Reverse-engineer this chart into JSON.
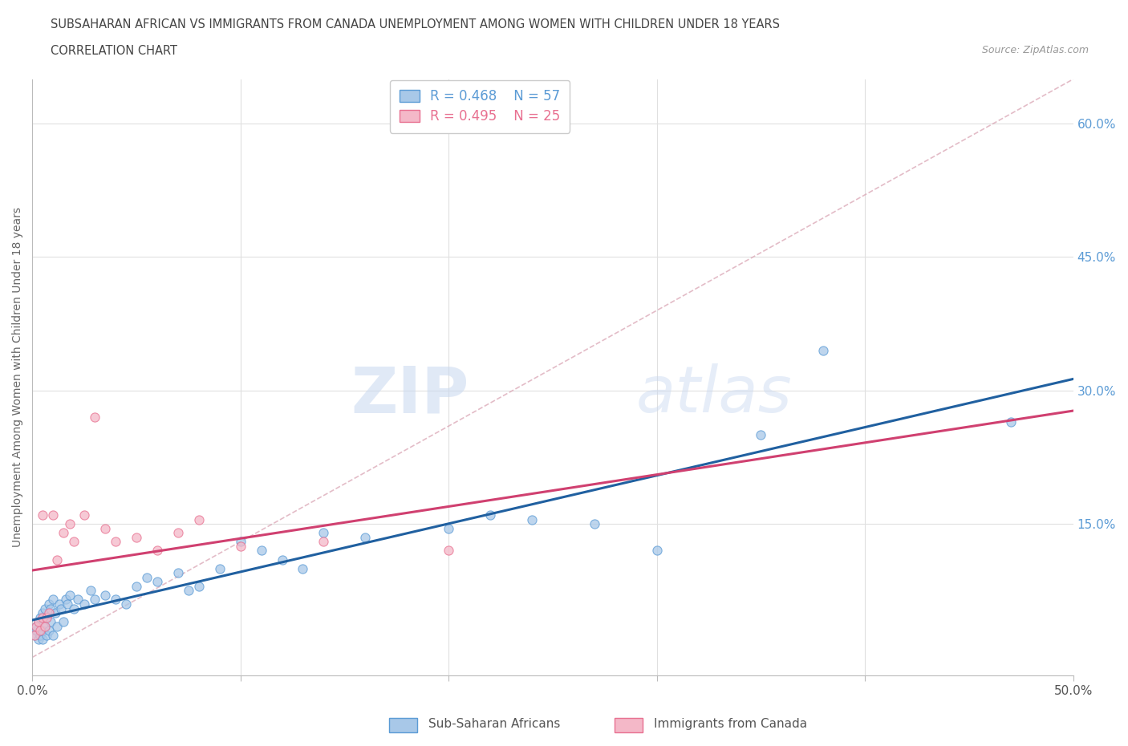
{
  "title_line1": "SUBSAHARAN AFRICAN VS IMMIGRANTS FROM CANADA UNEMPLOYMENT AMONG WOMEN WITH CHILDREN UNDER 18 YEARS",
  "title_line2": "CORRELATION CHART",
  "source_text": "Source: ZipAtlas.com",
  "watermark_zip": "ZIP",
  "watermark_atlas": "atlas",
  "ylabel": "Unemployment Among Women with Children Under 18 years",
  "xlim": [
    0.0,
    0.5
  ],
  "ylim": [
    -0.02,
    0.65
  ],
  "xticks": [
    0.0,
    0.1,
    0.2,
    0.3,
    0.4,
    0.5
  ],
  "yticks_right": [
    0.15,
    0.3,
    0.45,
    0.6
  ],
  "legend_r1": "R = 0.468",
  "legend_n1": "N = 57",
  "legend_r2": "R = 0.495",
  "legend_n2": "N = 25",
  "color_blue_fill": "#a8c8e8",
  "color_blue_edge": "#5b9bd5",
  "color_pink_fill": "#f4b8c8",
  "color_pink_edge": "#e87090",
  "color_trend_blue": "#2060a0",
  "color_trend_pink": "#d04070",
  "color_diagonal": "#d8a0b0",
  "blue_x": [
    0.001,
    0.002,
    0.002,
    0.003,
    0.003,
    0.004,
    0.004,
    0.005,
    0.005,
    0.005,
    0.006,
    0.006,
    0.007,
    0.007,
    0.008,
    0.008,
    0.009,
    0.009,
    0.01,
    0.01,
    0.011,
    0.012,
    0.013,
    0.014,
    0.015,
    0.016,
    0.017,
    0.018,
    0.02,
    0.022,
    0.025,
    0.028,
    0.03,
    0.035,
    0.04,
    0.045,
    0.05,
    0.055,
    0.06,
    0.07,
    0.075,
    0.08,
    0.09,
    0.1,
    0.11,
    0.12,
    0.13,
    0.14,
    0.16,
    0.2,
    0.22,
    0.24,
    0.27,
    0.3,
    0.35,
    0.38,
    0.47
  ],
  "blue_y": [
    0.025,
    0.03,
    0.035,
    0.02,
    0.04,
    0.025,
    0.045,
    0.02,
    0.03,
    0.05,
    0.035,
    0.055,
    0.025,
    0.045,
    0.03,
    0.06,
    0.04,
    0.055,
    0.025,
    0.065,
    0.05,
    0.035,
    0.06,
    0.055,
    0.04,
    0.065,
    0.06,
    0.07,
    0.055,
    0.065,
    0.06,
    0.075,
    0.065,
    0.07,
    0.065,
    0.06,
    0.08,
    0.09,
    0.085,
    0.095,
    0.075,
    0.08,
    0.1,
    0.13,
    0.12,
    0.11,
    0.1,
    0.14,
    0.135,
    0.145,
    0.16,
    0.155,
    0.15,
    0.12,
    0.25,
    0.345,
    0.265
  ],
  "pink_x": [
    0.001,
    0.002,
    0.003,
    0.004,
    0.005,
    0.005,
    0.006,
    0.007,
    0.008,
    0.01,
    0.012,
    0.015,
    0.018,
    0.02,
    0.025,
    0.03,
    0.035,
    0.04,
    0.05,
    0.06,
    0.07,
    0.08,
    0.1,
    0.14,
    0.2
  ],
  "pink_y": [
    0.025,
    0.035,
    0.04,
    0.03,
    0.045,
    0.16,
    0.035,
    0.045,
    0.05,
    0.16,
    0.11,
    0.14,
    0.15,
    0.13,
    0.16,
    0.27,
    0.145,
    0.13,
    0.135,
    0.12,
    0.14,
    0.155,
    0.125,
    0.13,
    0.12
  ]
}
